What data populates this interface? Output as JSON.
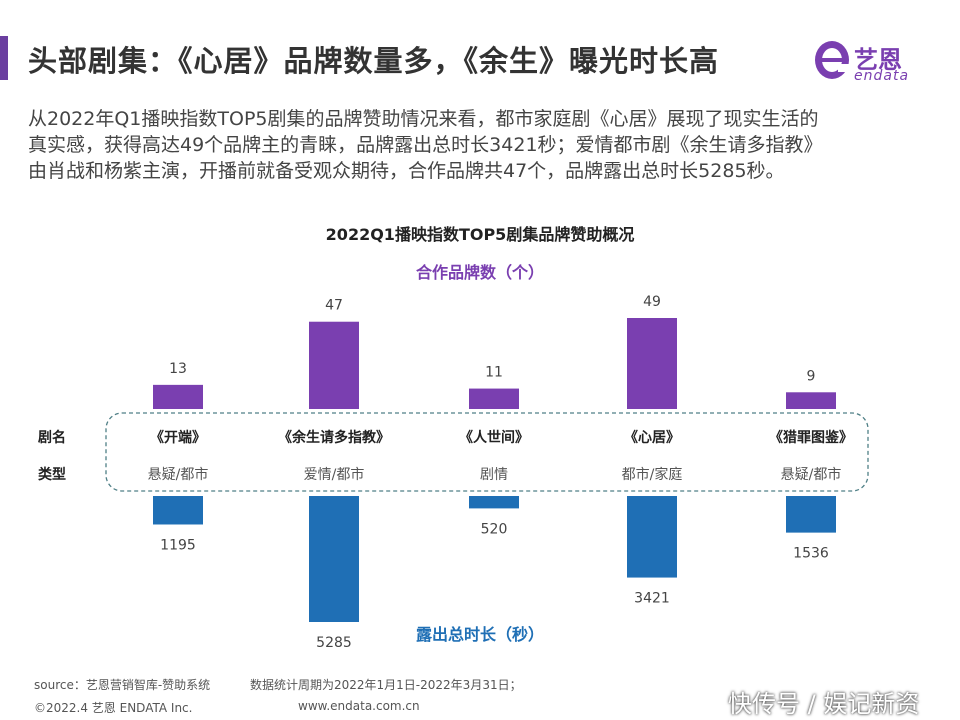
{
  "header": {
    "title": "头部剧集：《心居》品牌数量多，《余生》曝光时长高",
    "logo_text": "艺恩",
    "logo_sub": "endata"
  },
  "description": [
    "从2022年Q1播映指数TOP5剧集的品牌赞助情况来看，都市家庭剧《心居》展现了现实生活的",
    "真实感，获得高达49个品牌主的青睐，品牌露出总时长3421秒；爱情都市剧《余生请多指教》",
    "由肖战和杨紫主演，开播前就备受观众期待，合作品牌共47个，品牌露出总时长5285秒。"
  ],
  "chart_data": {
    "type": "bar",
    "title": "2022Q1播映指数TOP5剧集品牌赞助概况",
    "row_labels": {
      "name": "剧名",
      "type": "类型"
    },
    "categories": [
      "《开端》",
      "《余生请多指教》",
      "《人世间》",
      "《心居》",
      "《猎罪图鉴》"
    ],
    "genres": [
      "悬疑/都市",
      "爱情/都市",
      "剧情",
      "都市/家庭",
      "悬疑/都市"
    ],
    "series": [
      {
        "name": "合作品牌数（个）",
        "values": [
          13,
          47,
          11,
          49,
          9
        ],
        "color": "#7a3fb0",
        "direction": "up"
      },
      {
        "name": "露出总时长（秒）",
        "values": [
          1195,
          5285,
          520,
          3421,
          1536
        ],
        "color": "#1f6fb5",
        "direction": "down"
      }
    ]
  },
  "footer": {
    "source": "source：艺恩营销智库-赞助系统",
    "period": "数据统计周期为2022年1月1日-2022年3月31日；",
    "copyright": "©2022.4 艺恩 ENDATA Inc.",
    "website": "www.endata.com.cn",
    "watermark": "快传号 / 娱记新资"
  },
  "colors": {
    "accent": "#6b3fa0",
    "purple": "#7a3fb0",
    "blue": "#1f6fb5"
  }
}
